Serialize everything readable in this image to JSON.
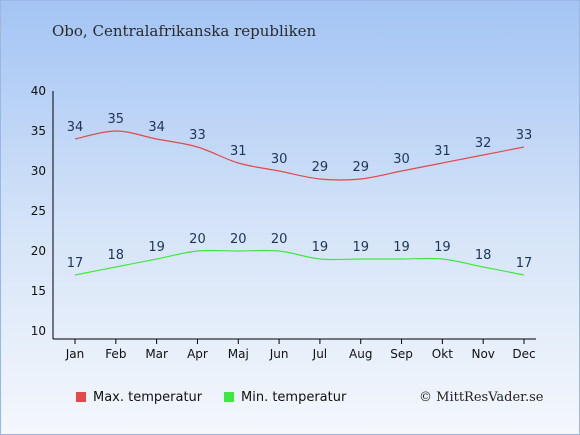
{
  "title": "Obo, Centralafrikanska republiken",
  "colors": {
    "max": "#e24a4a",
    "min": "#3ee83e"
  },
  "legend": {
    "max": "Max. temperatur",
    "min": "Min. temperatur"
  },
  "credit": "© MittResVader.se",
  "chart_data": {
    "type": "line",
    "title": "Obo, Centralafrikanska republiken",
    "categories": [
      "Jan",
      "Feb",
      "Mar",
      "Apr",
      "Maj",
      "Jun",
      "Jul",
      "Aug",
      "Sep",
      "Okt",
      "Nov",
      "Dec"
    ],
    "ylim": [
      10,
      40
    ],
    "yticks": [
      10,
      15,
      20,
      25,
      30,
      35,
      40
    ],
    "series": [
      {
        "name": "Max. temperatur",
        "values": [
          34,
          35,
          34,
          33,
          31,
          30,
          29,
          29,
          30,
          31,
          32,
          33
        ]
      },
      {
        "name": "Min. temperatur",
        "values": [
          17,
          18,
          19,
          20,
          20,
          20,
          19,
          19,
          19,
          19,
          18,
          17
        ]
      }
    ],
    "grid": false,
    "legend_position": "bottom"
  }
}
